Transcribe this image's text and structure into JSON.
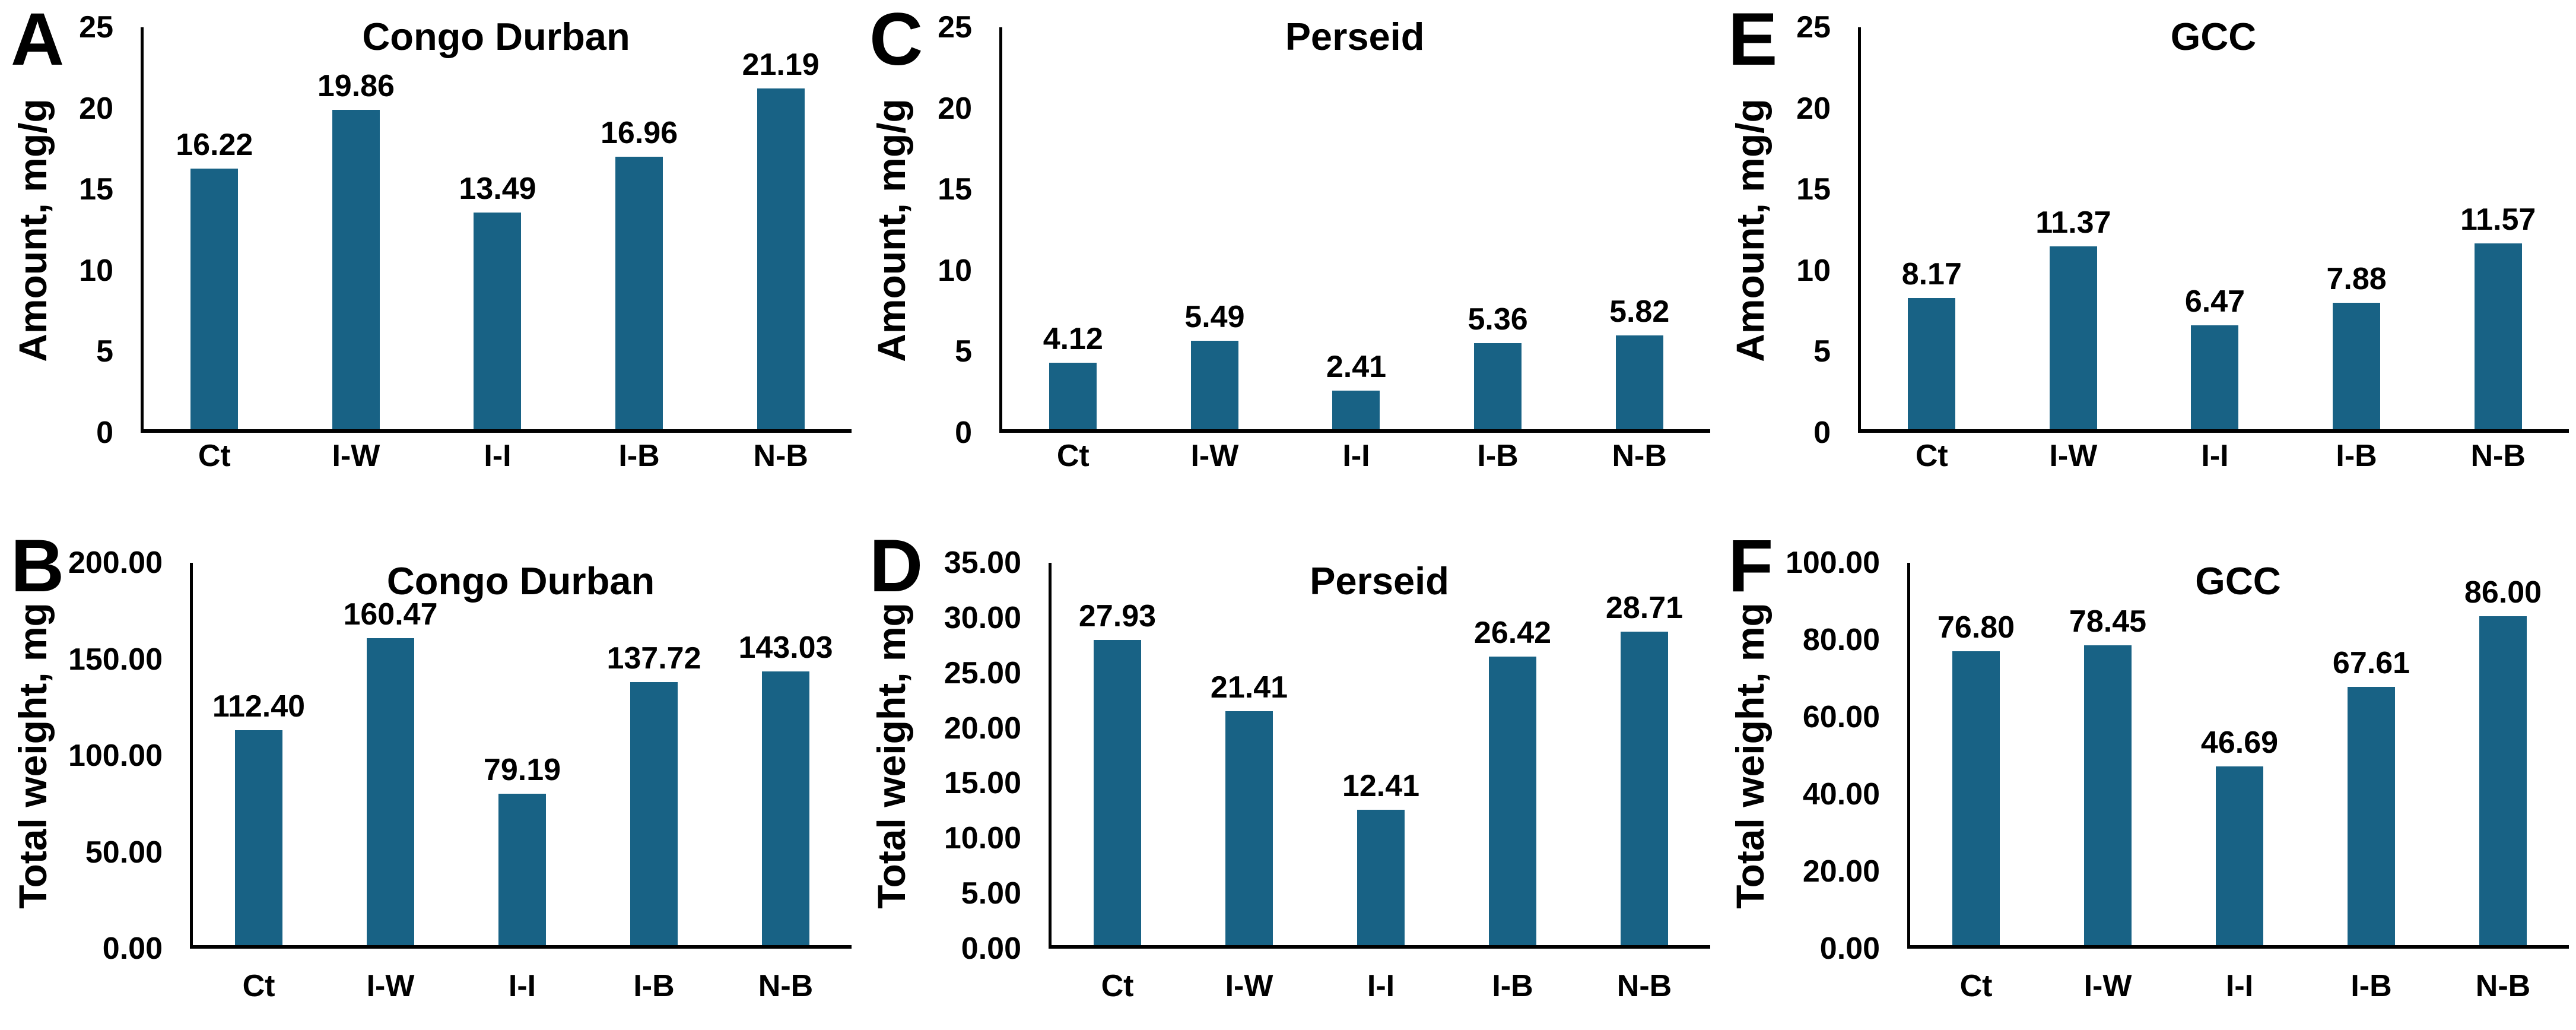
{
  "figure": {
    "bar_color": "#186285",
    "axis_color": "#000000",
    "background_color": "#ffffff"
  },
  "chart_data": [
    {
      "type": "bar",
      "panel_letter": "A",
      "title": "Congo Durban",
      "ylabel": "Amount, mg/g",
      "xlabel": "",
      "categories": [
        "Ct",
        "I-W",
        "I-I",
        "I-B",
        "N-B"
      ],
      "values": [
        16.22,
        19.86,
        13.49,
        16.96,
        21.19
      ],
      "value_labels": [
        "16.22",
        "19.86",
        "13.49",
        "16.96",
        "21.19"
      ],
      "ylim": [
        0,
        25
      ],
      "ytick_labels": [
        "0",
        "5",
        "10",
        "15",
        "20",
        "25"
      ],
      "grid": "off",
      "legend": "none"
    },
    {
      "type": "bar",
      "panel_letter": "C",
      "title": "Perseid",
      "ylabel": "Amount, mg/g",
      "xlabel": "",
      "categories": [
        "Ct",
        "I-W",
        "I-I",
        "I-B",
        "N-B"
      ],
      "values": [
        4.12,
        5.49,
        2.41,
        5.36,
        5.82
      ],
      "value_labels": [
        "4.12",
        "5.49",
        "2.41",
        "5.36",
        "5.82"
      ],
      "ylim": [
        0,
        25
      ],
      "ytick_labels": [
        "0",
        "5",
        "10",
        "15",
        "20",
        "25"
      ],
      "grid": "off",
      "legend": "none"
    },
    {
      "type": "bar",
      "panel_letter": "E",
      "title": "GCC",
      "ylabel": "Amount, mg/g",
      "xlabel": "",
      "categories": [
        "Ct",
        "I-W",
        "I-I",
        "I-B",
        "N-B"
      ],
      "values": [
        8.17,
        11.37,
        6.47,
        7.88,
        11.57
      ],
      "value_labels": [
        "8.17",
        "11.37",
        "6.47",
        "7.88",
        "11.57"
      ],
      "ylim": [
        0,
        25
      ],
      "ytick_labels": [
        "0",
        "5",
        "10",
        "15",
        "20",
        "25"
      ],
      "grid": "off",
      "legend": "none"
    },
    {
      "type": "bar",
      "panel_letter": "B",
      "title": "Congo Durban",
      "ylabel": "Total weight, mg",
      "xlabel": "",
      "categories": [
        "Ct",
        "I-W",
        "I-I",
        "I-B",
        "N-B"
      ],
      "values": [
        112.4,
        160.47,
        79.19,
        137.72,
        143.03
      ],
      "value_labels": [
        "112.40",
        "160.47",
        "79.19",
        "137.72",
        "143.03"
      ],
      "ylim": [
        0,
        200
      ],
      "ytick_labels": [
        "0.00",
        "50.00",
        "100.00",
        "150.00",
        "200.00"
      ],
      "grid": "off",
      "legend": "none"
    },
    {
      "type": "bar",
      "panel_letter": "D",
      "title": "Perseid",
      "ylabel": "Total weight, mg",
      "xlabel": "",
      "categories": [
        "Ct",
        "I-W",
        "I-I",
        "I-B",
        "N-B"
      ],
      "values": [
        27.93,
        21.41,
        12.41,
        26.42,
        28.71
      ],
      "value_labels": [
        "27.93",
        "21.41",
        "12.41",
        "26.42",
        "28.71"
      ],
      "ylim": [
        0,
        35
      ],
      "ytick_labels": [
        "0.00",
        "5.00",
        "10.00",
        "15.00",
        "20.00",
        "25.00",
        "30.00",
        "35.00"
      ],
      "grid": "off",
      "legend": "none"
    },
    {
      "type": "bar",
      "panel_letter": "F",
      "title": "GCC",
      "ylabel": "Total weight, mg",
      "xlabel": "",
      "categories": [
        "Ct",
        "I-W",
        "I-I",
        "I-B",
        "N-B"
      ],
      "values": [
        76.8,
        78.45,
        46.69,
        67.61,
        86.0
      ],
      "value_labels": [
        "76.80",
        "78.45",
        "46.69",
        "67.61",
        "86.00"
      ],
      "ylim": [
        0,
        100
      ],
      "ytick_labels": [
        "0.00",
        "20.00",
        "40.00",
        "60.00",
        "80.00",
        "100.00"
      ],
      "grid": "off",
      "legend": "none"
    }
  ]
}
